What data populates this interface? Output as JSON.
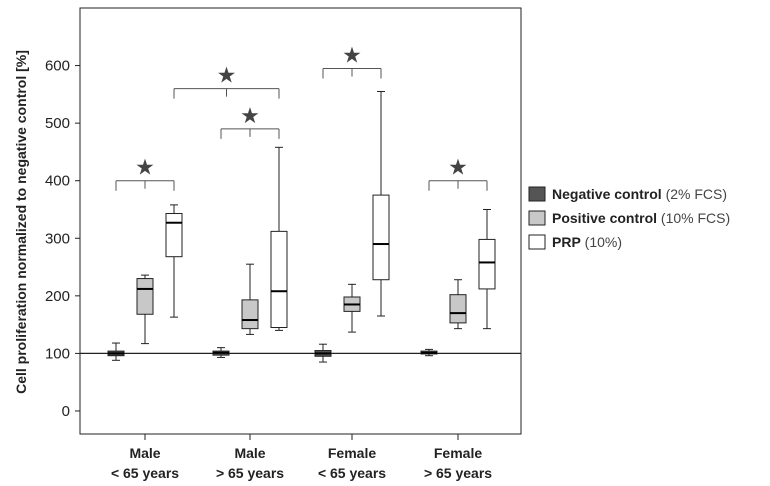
{
  "chart_data": {
    "type": "box",
    "ylabel": "Cell proliferation normalized to negative control [%]",
    "ylim": [
      -40,
      700
    ],
    "yticks": [
      0,
      100,
      200,
      300,
      400,
      500,
      600
    ],
    "reference_line": 100,
    "categories": [
      {
        "line1": "Male",
        "line2": "< 65 years"
      },
      {
        "line1": "Male",
        "line2": "> 65 years"
      },
      {
        "line1": "Female",
        "line2": "< 65 years"
      },
      {
        "line1": "Female",
        "line2": "> 65 years"
      }
    ],
    "series": [
      {
        "key": "neg",
        "name_bold": "Negative control",
        "name_rest": " (2% FCS)",
        "color": "#555555"
      },
      {
        "key": "pos",
        "name_bold": "Positive control",
        "name_rest": " (10% FCS)",
        "color": "#c8c8c8"
      },
      {
        "key": "prp",
        "name_bold": "PRP",
        "name_rest": " (10%)",
        "color": "#ffffff"
      }
    ],
    "boxes": [
      [
        {
          "min": 88,
          "q1": 96,
          "median": 100,
          "q3": 104,
          "max": 118
        },
        {
          "min": 117,
          "q1": 168,
          "median": 212,
          "q3": 230,
          "max": 236
        },
        {
          "min": 163,
          "q1": 268,
          "median": 327,
          "q3": 343,
          "max": 358
        }
      ],
      [
        {
          "min": 93,
          "q1": 97,
          "median": 101,
          "q3": 104,
          "max": 110
        },
        {
          "min": 133,
          "q1": 143,
          "median": 158,
          "q3": 193,
          "max": 255
        },
        {
          "min": 140,
          "q1": 145,
          "median": 208,
          "q3": 312,
          "max": 458
        }
      ],
      [
        {
          "min": 85,
          "q1": 95,
          "median": 100,
          "q3": 105,
          "max": 116
        },
        {
          "min": 137,
          "q1": 173,
          "median": 185,
          "q3": 198,
          "max": 220
        },
        {
          "min": 165,
          "q1": 228,
          "median": 290,
          "q3": 375,
          "max": 555
        }
      ],
      [
        {
          "min": 96,
          "q1": 99,
          "median": 101,
          "q3": 104,
          "max": 107
        },
        {
          "min": 143,
          "q1": 153,
          "median": 170,
          "q3": 202,
          "max": 228
        },
        {
          "min": 143,
          "q1": 212,
          "median": 258,
          "q3": 298,
          "max": 350
        }
      ]
    ],
    "significance": [
      {
        "star": "★",
        "from_group": 0,
        "from_series": 0,
        "to_group": 0,
        "to_series": 2,
        "y": 400
      },
      {
        "star": "★",
        "from_group": 1,
        "from_series": 0,
        "to_group": 1,
        "to_series": 2,
        "y": 490
      },
      {
        "star": "★",
        "from_group": 0,
        "from_series": 2,
        "to_group": 1,
        "to_series": 2,
        "y": 560
      },
      {
        "star": "★",
        "from_group": 2,
        "from_series": 0,
        "to_group": 2,
        "to_series": 2,
        "y": 595
      },
      {
        "star": "★",
        "from_group": 3,
        "from_series": 0,
        "to_group": 3,
        "to_series": 2,
        "y": 400
      }
    ],
    "legend_position": "right",
    "grid": false
  }
}
